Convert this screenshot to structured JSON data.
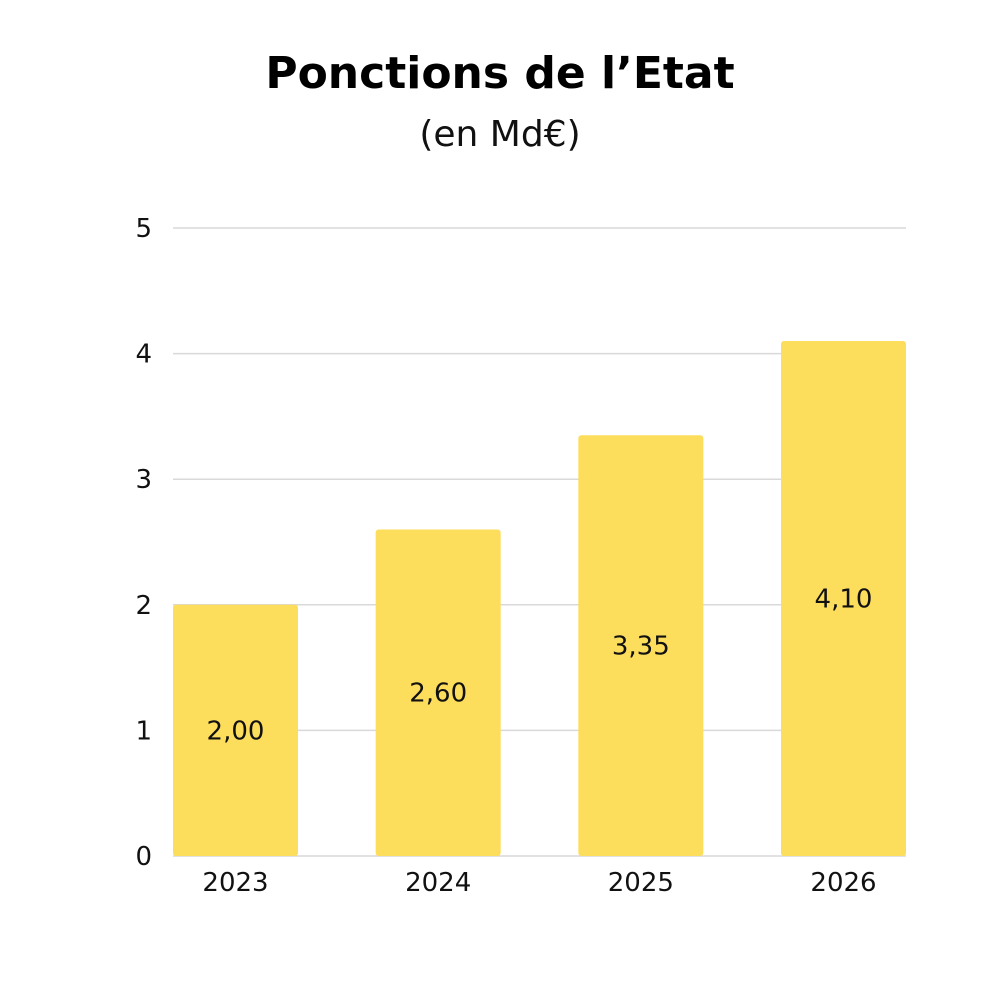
{
  "chart_data": {
    "type": "bar",
    "title": "Ponctions de l’Etat",
    "subtitle": "(en Md€)",
    "categories": [
      "2023",
      "2024",
      "2025",
      "2026"
    ],
    "values": [
      2.0,
      2.6,
      3.35,
      4.1
    ],
    "data_labels": [
      "2,00",
      "2,60",
      "3,35",
      "4,10"
    ],
    "ylim": [
      0,
      5
    ],
    "yticks": [
      0,
      1,
      2,
      3,
      4,
      5
    ],
    "ytick_labels": [
      "0",
      "1",
      "2",
      "3",
      "4",
      "5"
    ],
    "grid": true,
    "bar_color": "#FDDD5C",
    "grid_color": "#d9d9d9"
  }
}
